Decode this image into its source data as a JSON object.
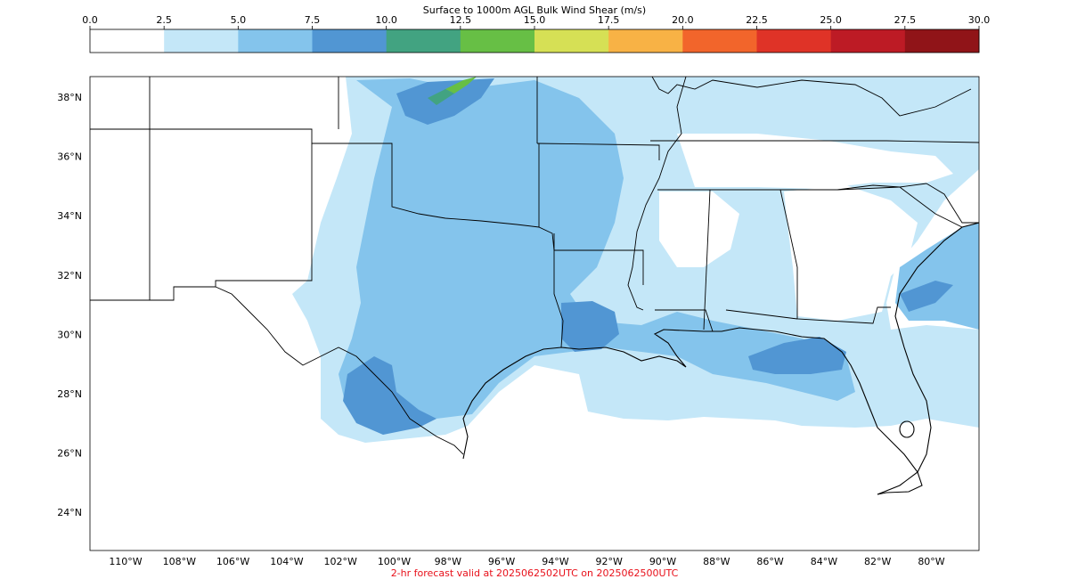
{
  "colorbar": {
    "title": "Surface to 1000m AGL Bulk Wind Shear (m/s)",
    "ticks": [
      "0.0",
      "2.5",
      "5.0",
      "7.5",
      "10.0",
      "12.5",
      "15.0",
      "17.5",
      "20.0",
      "22.5",
      "25.0",
      "27.5",
      "30.0"
    ],
    "colors": [
      "#ffffff",
      "#c4e7f8",
      "#84c4ec",
      "#5196d3",
      "#42a381",
      "#67bf45",
      "#d6e055",
      "#f8b245",
      "#f2652b",
      "#df3327",
      "#bd1b25",
      "#901418"
    ]
  },
  "map": {
    "lat_labels": [
      "38°N",
      "36°N",
      "34°N",
      "32°N",
      "30°N",
      "28°N",
      "26°N",
      "24°N"
    ],
    "lon_labels": [
      "110°W",
      "108°W",
      "106°W",
      "104°W",
      "102°W",
      "100°W",
      "98°W",
      "96°W",
      "94°W",
      "92°W",
      "90°W",
      "88°W",
      "86°W",
      "84°W",
      "82°W",
      "80°W"
    ],
    "border_color": "#000000",
    "shear_fill_colors": {
      "light": "#c4e7f8",
      "medium": "#84c4ec",
      "dark": "#5196d3",
      "green": "#67bf45"
    }
  },
  "footer": {
    "text": "2-hr forecast valid at 2025062502UTC on 2025062500UTC",
    "color": "#e8101a"
  }
}
